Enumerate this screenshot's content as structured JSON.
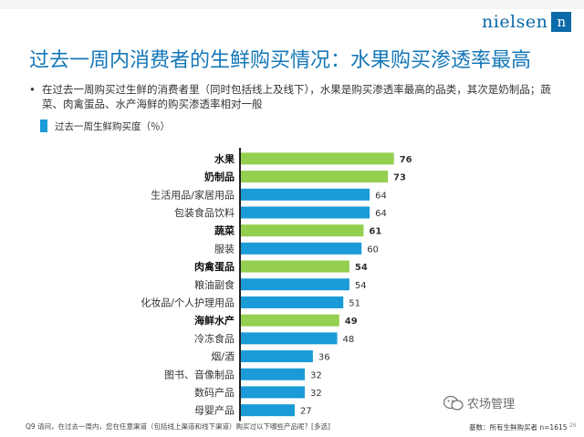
{
  "brand": {
    "name": "nielsen",
    "mark": "n"
  },
  "title": "过去一周内消费者的生鲜购买情况：水果购买渗透率最高",
  "bullet": "在过去一周购买过生鲜的消费者里（同时包括线上及线下），水果是购买渗透率最高的品类，其次是奶制品；蔬菜、肉禽蛋品、水产海鲜的购买渗透率相对一般",
  "subtitle": "过去一周生鲜购买度（％）",
  "footnote": "Q9  请问，在过去一周内，您在任意渠道（包括线上渠道和线下渠道）购买过以下哪些产品呢？[多选]",
  "base": "基数：所有生鲜购买者 n=1615",
  "page_number": "26",
  "watermark": "农场管理",
  "colors": {
    "fresh": "#94cf4f",
    "other": "#1a9bd7",
    "title": "#1577b8"
  },
  "chart_data": {
    "type": "bar",
    "orientation": "horizontal",
    "categories": [
      "水果",
      "奶制品",
      "生活用品/家居用品",
      "包装食品饮料",
      "蔬菜",
      "服装",
      "肉禽蛋品",
      "粮油副食",
      "化妆品/个人护理用品",
      "海鲜水产",
      "冷冻食品",
      "烟/酒",
      "图书、音像制品",
      "数码产品",
      "母婴产品"
    ],
    "values": [
      76,
      73,
      64,
      64,
      61,
      60,
      54,
      54,
      51,
      49,
      48,
      36,
      32,
      32,
      27
    ],
    "highlight": [
      true,
      true,
      false,
      false,
      true,
      false,
      true,
      false,
      false,
      true,
      false,
      false,
      false,
      false,
      false
    ],
    "title": "过去一周生鲜购买度（％）",
    "xlim": [
      0,
      100
    ],
    "grid": false,
    "legend": "none"
  }
}
